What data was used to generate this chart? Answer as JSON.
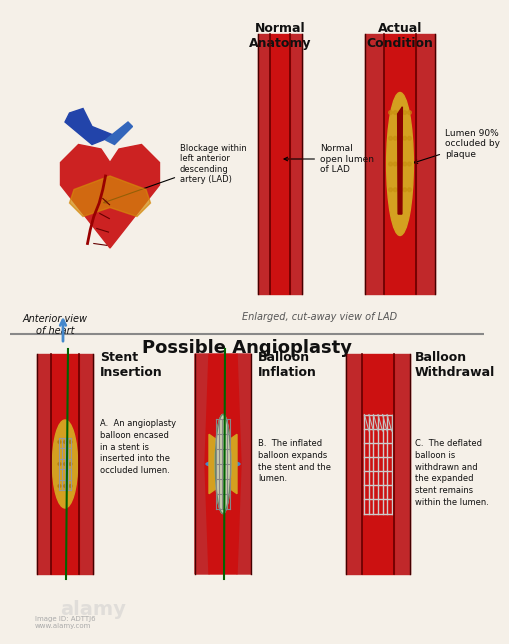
{
  "title_top_left": "Normal\nAnatomy",
  "title_top_right": "Actual\nCondition",
  "label_heart": "Anterior view\nof heart",
  "label_lad": "Enlarged, cut-away view of LAD",
  "label_blockage": "Blockage within\nleft anterior\ndescending\nartery (LAD)",
  "label_normal_lumen": "Normal\nopen lumen\nof LAD",
  "label_occluded": "Lumen 90%\noccluded by\nplaque",
  "title_bottom": "Possible Angioplasty",
  "stent_title": "Stent\nInsertion",
  "balloon_title": "Balloon\nInflation",
  "withdrawal_title": "Balloon\nWithdrawal",
  "text_a": "A.  An angioplasty\nballoon encased\nin a stent is\ninserted into the\noccluded lumen.",
  "text_b": "B.  The inflated\nballoon expands\nthe stent and the\nlumen.",
  "text_c": "C.  The deflated\nballoon is\nwithdrawn and\nthe expanded\nstent remains\nwithin the lumen.",
  "bg_color": "#f5f0e8",
  "artery_red": "#c0282a",
  "artery_dark": "#8b1a1a",
  "lumen_color": "#d44040",
  "plaque_color": "#d4a020",
  "stent_color": "#cccccc",
  "balloon_color": "#c8e0c0",
  "blue_color": "#4488cc",
  "text_color": "#111111",
  "divider_color": "#888888",
  "watermark_color": "#cccccc"
}
